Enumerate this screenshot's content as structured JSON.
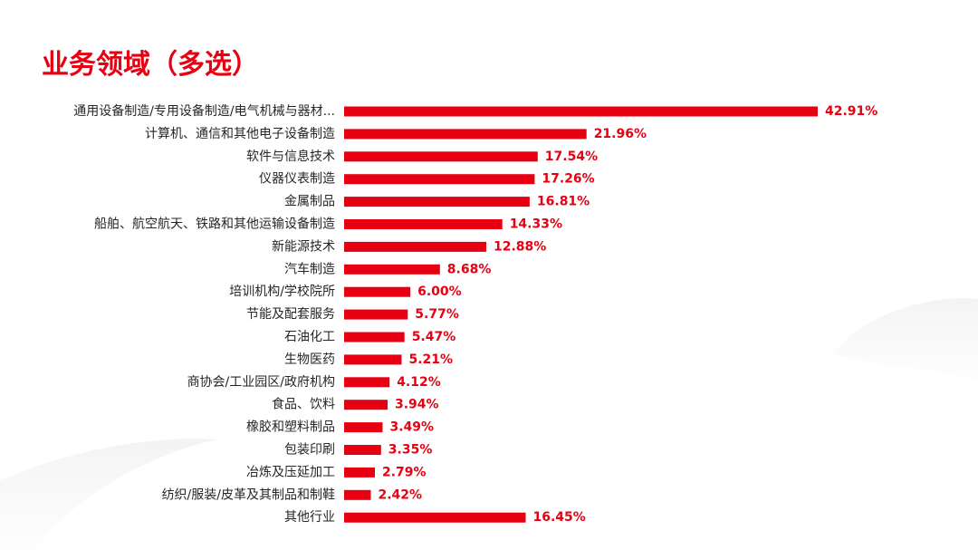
{
  "page": {
    "title": "业务领域（多选）",
    "accent_color": "#e60012"
  },
  "chart_data": {
    "type": "bar",
    "orientation": "horizontal",
    "title": "",
    "xlabel": "",
    "ylabel": "",
    "xlim": [
      0,
      42.91
    ],
    "grid": false,
    "legend": "none",
    "bar_color": "#e60012",
    "value_label_color": "#e60012",
    "categories": [
      "通用设备制造/专用设备制造/电气机械与器材...",
      "计算机、通信和其他电子设备制造",
      "软件与信息技术",
      "仪器仪表制造",
      "金属制品",
      "船舶、航空航天、铁路和其他运输设备制造",
      "新能源技术",
      "汽车制造",
      "培训机构/学校院所",
      "节能及配套服务",
      "石油化工",
      "生物医药",
      "商协会/工业园区/政府机构",
      "食品、饮料",
      "橡胶和塑料制品",
      "包装印刷",
      "冶炼及压延加工",
      "纺织/服装/皮革及其制品和制鞋",
      "其他行业"
    ],
    "values": [
      42.91,
      21.96,
      17.54,
      17.26,
      16.81,
      14.33,
      12.88,
      8.68,
      6.0,
      5.77,
      5.47,
      5.21,
      4.12,
      3.94,
      3.49,
      3.35,
      2.79,
      2.42,
      16.45
    ],
    "value_labels": [
      "42.91%",
      "21.96%",
      "17.54%",
      "17.26%",
      "16.81%",
      "14.33%",
      "12.88%",
      "8.68%",
      "6.00%",
      "5.77%",
      "5.47%",
      "5.21%",
      "4.12%",
      "3.94%",
      "3.49%",
      "3.35%",
      "2.79%",
      "2.42%",
      "16.45%"
    ]
  }
}
